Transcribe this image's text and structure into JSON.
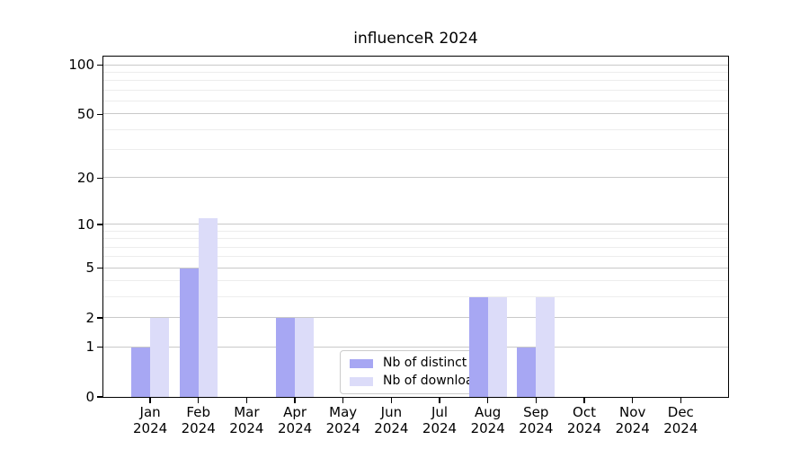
{
  "chart_data": {
    "type": "bar",
    "title": "influenceR 2024",
    "categories": [
      "Jan 2024",
      "Feb 2024",
      "Mar 2024",
      "Apr 2024",
      "May 2024",
      "Jun 2024",
      "Jul 2024",
      "Aug 2024",
      "Sep 2024",
      "Oct 2024",
      "Nov 2024",
      "Dec 2024"
    ],
    "series": [
      {
        "name": "Nb of distinct IPs",
        "color": "#a7a7f3",
        "values": [
          1,
          5,
          0,
          2,
          0,
          0,
          0,
          3,
          1,
          0,
          0,
          0
        ]
      },
      {
        "name": "Nb of downloads",
        "color": "#dcdcf9",
        "values": [
          2,
          11,
          0,
          2,
          0,
          0,
          0,
          3,
          3,
          0,
          0,
          0
        ]
      }
    ],
    "xlabel": "",
    "ylabel": "",
    "yscale": "log1p",
    "ylim": [
      0,
      112
    ],
    "yticks": [
      0,
      1,
      2,
      5,
      10,
      20,
      50,
      100
    ],
    "y_minor_gridlines": [
      3,
      4,
      6,
      7,
      8,
      9,
      30,
      40,
      60,
      70,
      80,
      90
    ],
    "grid": "horizontal, major and minor, on",
    "legend_position": "lower center inside plot",
    "colors": {
      "grid_major": "#c9c9c9",
      "grid_minor": "#ededed",
      "axis": "#000000",
      "background": "#ffffff",
      "legend_border": "#cccccc"
    }
  }
}
